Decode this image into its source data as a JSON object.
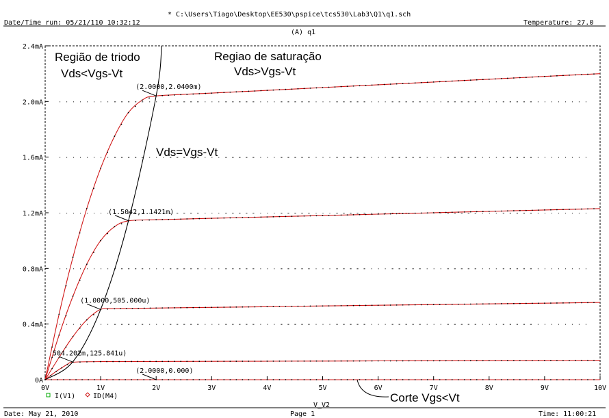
{
  "header": {
    "file_path": "* C:\\Users\\Tiago\\Desktop\\EE530\\pspice\\tcs530\\Lab3\\Q1\\q1.sch",
    "date_time_run": "Date/Time run: 05/21/110 10:32:12",
    "temperature": "Temperature: 27.0",
    "plot_title": "(A) q1"
  },
  "footer": {
    "date": "Date: May 21, 2010",
    "page": "Page 1",
    "time": "Time: 11:00:21"
  },
  "legend": {
    "items": [
      {
        "label": "I(V1)",
        "marker": "square",
        "color": "#00aa00"
      },
      {
        "label": "ID(M4)",
        "marker": "diamond",
        "color": "#d01818"
      }
    ]
  },
  "colors": {
    "curve": "#d01818",
    "boundary": "#000000",
    "frame": "#000000"
  },
  "chart_data": {
    "type": "line",
    "xlabel": "V_V2",
    "ylabel": "",
    "xlim": [
      0,
      10
    ],
    "ylim": [
      0,
      2.4
    ],
    "x_ticks": [
      "0V",
      "1V",
      "2V",
      "3V",
      "4V",
      "5V",
      "6V",
      "7V",
      "8V",
      "9V",
      "10V"
    ],
    "y_ticks": [
      "0A",
      "0.4mA",
      "0.8mA",
      "1.2mA",
      "1.6mA",
      "2.0mA",
      "2.4mA"
    ],
    "y_unit": "mA",
    "grid": "dotted",
    "series": [
      {
        "points": [
          [
            0,
            0
          ],
          [
            0.25,
            0.47
          ],
          [
            0.5,
            0.88
          ],
          [
            0.75,
            1.23
          ],
          [
            1.0,
            1.52
          ],
          [
            1.25,
            1.75
          ],
          [
            1.5,
            1.92
          ],
          [
            1.75,
            2.01
          ],
          [
            2.0,
            2.04
          ],
          [
            3,
            2.06
          ],
          [
            4,
            2.08
          ],
          [
            5,
            2.1
          ],
          [
            6,
            2.12
          ],
          [
            7,
            2.14
          ],
          [
            8,
            2.16
          ],
          [
            9,
            2.18
          ],
          [
            10,
            2.2
          ]
        ]
      },
      {
        "points": [
          [
            0,
            0
          ],
          [
            0.25,
            0.32
          ],
          [
            0.5,
            0.6
          ],
          [
            0.75,
            0.83
          ],
          [
            1.0,
            1.0
          ],
          [
            1.25,
            1.1
          ],
          [
            1.5042,
            1.1421
          ],
          [
            2,
            1.15
          ],
          [
            3,
            1.16
          ],
          [
            4,
            1.17
          ],
          [
            5,
            1.18
          ],
          [
            6,
            1.19
          ],
          [
            7,
            1.2
          ],
          [
            8,
            1.21
          ],
          [
            9,
            1.22
          ],
          [
            10,
            1.23
          ]
        ]
      },
      {
        "points": [
          [
            0,
            0
          ],
          [
            0.25,
            0.16
          ],
          [
            0.5,
            0.31
          ],
          [
            0.75,
            0.43
          ],
          [
            1.0,
            0.505
          ],
          [
            1.25,
            0.51
          ],
          [
            2,
            0.515
          ],
          [
            3,
            0.52
          ],
          [
            4,
            0.525
          ],
          [
            5,
            0.53
          ],
          [
            6,
            0.535
          ],
          [
            7,
            0.54
          ],
          [
            8,
            0.545
          ],
          [
            9,
            0.55
          ],
          [
            10,
            0.555
          ]
        ]
      },
      {
        "points": [
          [
            0,
            0
          ],
          [
            0.2,
            0.06
          ],
          [
            0.4,
            0.11
          ],
          [
            0.504202,
            0.125841
          ],
          [
            1,
            0.13
          ],
          [
            2,
            0.131
          ],
          [
            3,
            0.132
          ],
          [
            4,
            0.133
          ],
          [
            5,
            0.134
          ],
          [
            6,
            0.135
          ],
          [
            7,
            0.136
          ],
          [
            8,
            0.137
          ],
          [
            9,
            0.138
          ],
          [
            10,
            0.139
          ]
        ]
      },
      {
        "points": [
          [
            0,
            0
          ],
          [
            10,
            0
          ]
        ]
      }
    ],
    "boundary_curve": {
      "points": [
        [
          0,
          0
        ],
        [
          0.5,
          0.13
        ],
        [
          1.0,
          0.505
        ],
        [
          1.5,
          1.14
        ],
        [
          2.0,
          2.04
        ],
        [
          2.1,
          2.4
        ]
      ]
    },
    "point_labels": [
      {
        "text": "(2.0000,2.0400m)",
        "x": 2.0,
        "y": 2.04
      },
      {
        "text": "(1.5042,1.1421m)",
        "x": 1.5042,
        "y": 1.1421
      },
      {
        "text": "(1.0000,505.000u)",
        "x": 1.0,
        "y": 0.505
      },
      {
        "text": "504.202m,125.841u)",
        "x": 0.504202,
        "y": 0.125841
      },
      {
        "text": "(2.0000,0.000)",
        "x": 2.0,
        "y": 0.0
      }
    ],
    "annotations": {
      "triode_title": "Região de triodo",
      "triode_cond": "Vds<Vgs-Vt",
      "sat_title": "Regiao de saturação",
      "sat_cond": "Vds>Vgs-Vt",
      "boundary": "Vds=Vgs-Vt",
      "cutoff": "Corte  Vgs<Vt"
    }
  }
}
